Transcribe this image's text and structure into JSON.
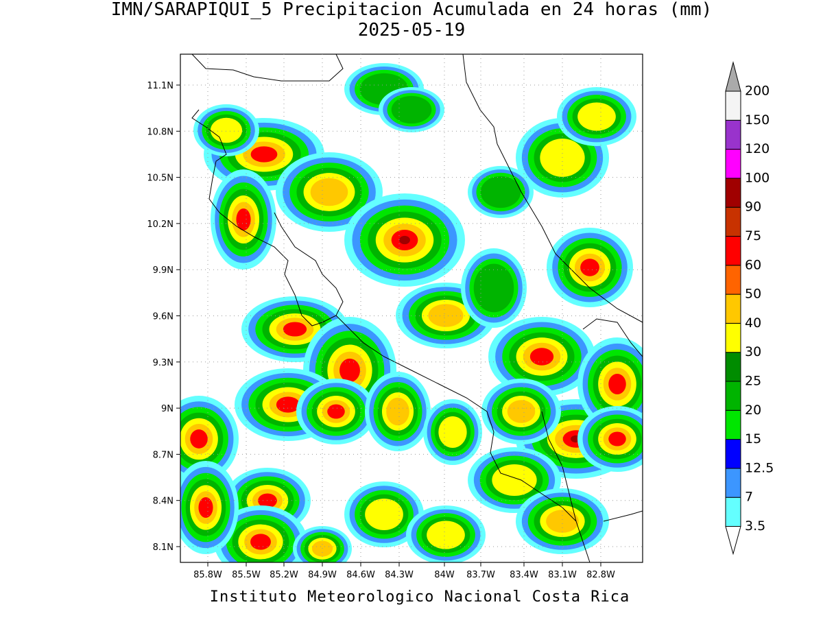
{
  "title": "IMN/SARAPIQUI_5 Precipitacion Acumulada en 24 horas (mm)",
  "subtitle": "2025-05-19",
  "map": {
    "lat_labels": [
      "11.1N",
      "10.8N",
      "10.5N",
      "10.2N",
      "9.9N",
      "9.6N",
      "9.3N",
      "9N",
      "8.7N",
      "8.4N",
      "8.1N"
    ],
    "lon_labels": [
      "85.8W",
      "85.5W",
      "85.2W",
      "84.9W",
      "84.6W",
      "84.3W",
      "84W",
      "83.7W",
      "83.4W",
      "83.1W",
      "82.8W"
    ]
  },
  "colorbar": {
    "levels": [
      3.5,
      7,
      12.5,
      15,
      20,
      25,
      30,
      40,
      50,
      60,
      75,
      90,
      100,
      120,
      150,
      200
    ],
    "colors": [
      "#ffffff",
      "#64ffff",
      "#3c96ff",
      "#0000ff",
      "#00e600",
      "#00b400",
      "#008c00",
      "#ffff00",
      "#ffc800",
      "#ff6400",
      "#ff0000",
      "#c83200",
      "#a00000",
      "#ff00ff",
      "#9933cc",
      "#f4f4f4",
      "#aaaaaa"
    ]
  },
  "footer": "Instituto Meteorologico Nacional Costa Rica"
}
